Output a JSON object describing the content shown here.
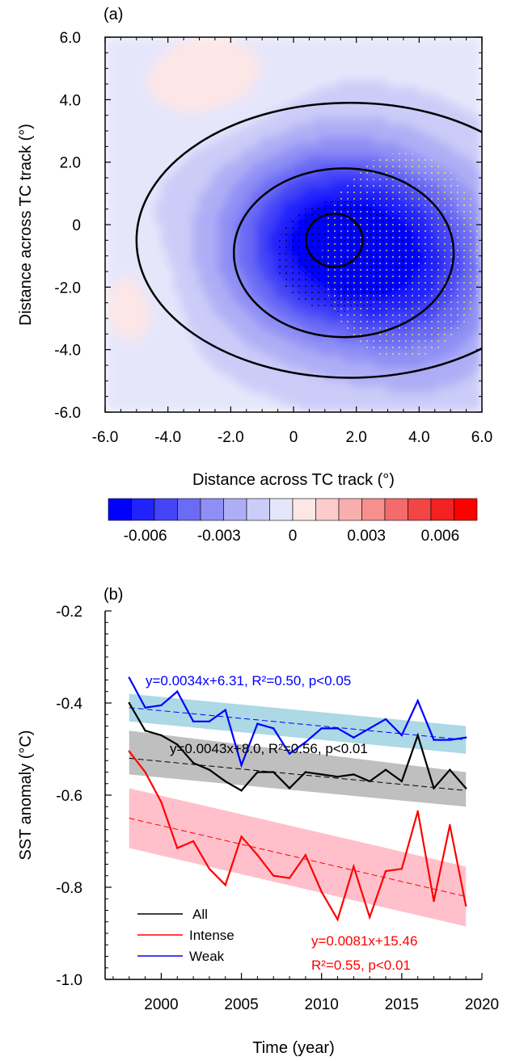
{
  "panel_a": {
    "label": "(a)",
    "xlabel": "Distance across TC track (°)",
    "ylabel": "Distance across TC track (°)",
    "colorbar_ticks": [
      "-0.006",
      "-0.003",
      "0",
      "0.003",
      "0.006"
    ]
  },
  "panel_b": {
    "label": "(b)",
    "ylabel": "SST anomaly (°C)",
    "xlabel": "Time (year)",
    "eq_weak": "y=0.0034x+6.31, R²=0.50, p<0.05",
    "eq_all": "y=0.0043x+8.0, R²=0.56, p<0.01",
    "eq_intense_1": "y=0.0081x+15.46",
    "eq_intense_2": "R²=0.55, p<0.01",
    "legend": [
      "All",
      "Intense",
      "Weak"
    ]
  },
  "colors": {
    "all": "#000000",
    "intense": "#ff0000",
    "weak": "#0000ff",
    "band_all": "#bfbfbf",
    "band_intense": "#ffc0cb",
    "band_weak": "#add8e6",
    "stipple_black": "#000000",
    "stipple_yellow": "#ffff33"
  },
  "chart_data": [
    {
      "type": "heatmap",
      "title": "(a)",
      "xlabel": "Distance across TC track (°)",
      "ylabel": "Distance across TC track (°)",
      "xlim": [
        -6,
        6
      ],
      "ylim": [
        -6,
        6
      ],
      "xticks": [
        "-6.0",
        "-4.0",
        "-2.0",
        "0",
        "2.0",
        "4.0",
        "6.0"
      ],
      "yticks": [
        "6.0",
        "4.0",
        "2.0",
        "0",
        "-2.0",
        "-4.0",
        "-6.0"
      ],
      "colorbar": {
        "levels": [
          -0.0075,
          -0.0065,
          -0.0055,
          -0.0045,
          -0.0035,
          -0.0025,
          -0.0015,
          -0.0005,
          0.0005,
          0.0015,
          0.0025,
          0.0035,
          0.0045,
          0.0055,
          0.0065,
          0.0075
        ],
        "colors": [
          "#0000ff",
          "#2222fb",
          "#4545f7",
          "#6b6bf5",
          "#8f8ff5",
          "#aeaef6",
          "#ccccf8",
          "#e6e6fb",
          "#fde6e6",
          "#fccccc",
          "#f9aeae",
          "#f78f8f",
          "#f56b6b",
          "#f44545",
          "#f22222",
          "#ff0000"
        ],
        "tick_labels": [
          "-0.006",
          "-0.003",
          "0",
          "0.003",
          "0.006"
        ],
        "tick_values": [
          -0.006,
          -0.003,
          0,
          0.003,
          0.006
        ]
      },
      "anomaly_center": [
        1.3,
        -0.6
      ],
      "min_value": -0.0075,
      "contours": [
        {
          "center": [
            1.3,
            -0.5
          ],
          "radius_x": 0.9,
          "radius_y": 0.85
        },
        {
          "center": [
            1.6,
            -0.9
          ],
          "radius_x": 3.5,
          "radius_y": 2.7
        },
        {
          "center": [
            1.8,
            -0.5
          ],
          "radius_x": 6.8,
          "radius_y": 4.4
        }
      ],
      "stippling": [
        {
          "color": "black",
          "meaning": "dense dots",
          "center": [
            1.5,
            -1.0
          ],
          "radius_x": 2.1,
          "radius_y": 1.8
        },
        {
          "color": "yellow",
          "meaning": "dots",
          "center": [
            3.5,
            -1.0
          ],
          "radius_x": 2.6,
          "radius_y": 3.3
        }
      ]
    },
    {
      "type": "line",
      "title": "(b)",
      "xlabel": "Time (year)",
      "ylabel": "SST anomaly (°C)",
      "xlim": [
        1996.5,
        2020
      ],
      "ylim": [
        -1.0,
        -0.2
      ],
      "xticks": [
        2000,
        2005,
        2010,
        2015,
        2020
      ],
      "yticks": [
        -0.2,
        -0.4,
        -0.6,
        -0.8,
        -1.0
      ],
      "ytick_labels": [
        "-0.2",
        "-0.4",
        "-0.6",
        "-0.8",
        "-1.0"
      ],
      "legend_position": "bottom-left",
      "x": [
        1998,
        1999,
        2000,
        2001,
        2002,
        2003,
        2004,
        2005,
        2006,
        2007,
        2008,
        2009,
        2010,
        2011,
        2012,
        2013,
        2014,
        2015,
        2016,
        2017,
        2018,
        2019
      ],
      "series": [
        {
          "name": "All",
          "color": "#000000",
          "values": [
            -0.4,
            -0.46,
            -0.47,
            -0.49,
            -0.53,
            -0.545,
            -0.57,
            -0.59,
            -0.55,
            -0.55,
            -0.585,
            -0.55,
            -0.555,
            -0.56,
            -0.555,
            -0.57,
            -0.545,
            -0.57,
            -0.47,
            -0.585,
            -0.545,
            -0.585
          ],
          "trend": [
            -0.52,
            -0.59
          ],
          "band_low": [
            -0.555,
            -0.625
          ],
          "band_high": [
            -0.46,
            -0.55
          ]
        },
        {
          "name": "Intense",
          "color": "#ff0000",
          "values": [
            -0.505,
            -0.55,
            -0.615,
            -0.715,
            -0.7,
            -0.76,
            -0.795,
            -0.69,
            -0.73,
            -0.775,
            -0.78,
            -0.73,
            -0.81,
            -0.87,
            -0.755,
            -0.865,
            -0.765,
            -0.76,
            -0.635,
            -0.83,
            -0.665,
            -0.84
          ],
          "trend": [
            -0.65,
            -0.82
          ],
          "band_low": [
            -0.715,
            -0.885
          ],
          "band_high": [
            -0.585,
            -0.755
          ]
        },
        {
          "name": "Weak",
          "color": "#0000ff",
          "values": [
            -0.345,
            -0.41,
            -0.405,
            -0.375,
            -0.44,
            -0.44,
            -0.415,
            -0.535,
            -0.445,
            -0.455,
            -0.51,
            -0.485,
            -0.455,
            -0.455,
            -0.475,
            -0.455,
            -0.435,
            -0.47,
            -0.395,
            -0.48,
            -0.48,
            -0.475
          ],
          "trend": [
            -0.41,
            -0.48
          ],
          "band_low": [
            -0.44,
            -0.51
          ],
          "band_high": [
            -0.38,
            -0.45
          ]
        }
      ],
      "annotations": [
        "y=0.0034x+6.31, R²=0.50, p<0.05",
        "y=0.0043x+8.0, R²=0.56, p<0.01",
        "y=0.0081x+15.46",
        "R²=0.55, p<0.01"
      ]
    }
  ]
}
